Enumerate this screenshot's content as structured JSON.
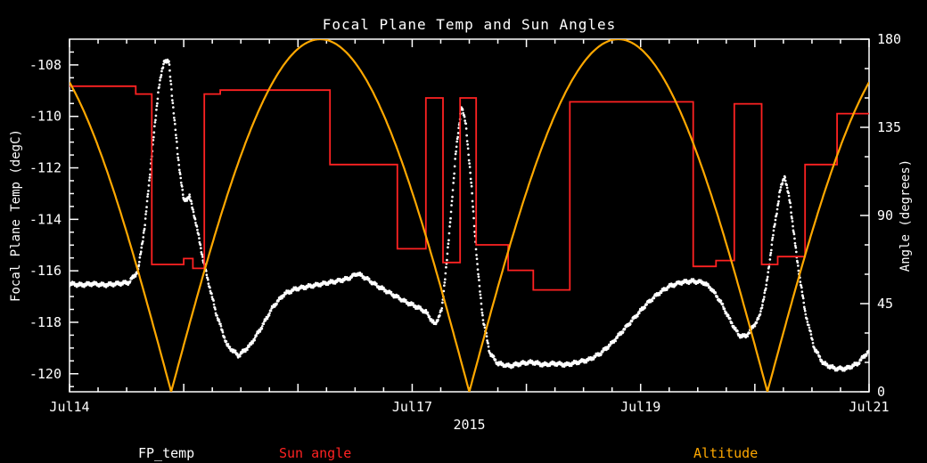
{
  "title": "Focal Plane Temp and Sun Angles",
  "axes": {
    "left": {
      "label": "Focal Plane Temp (degC)",
      "range": [
        -120.7,
        -107.0
      ],
      "ticks": [
        -108,
        -110,
        -112,
        -114,
        -116,
        -118,
        -120
      ],
      "minor_step": 0.5
    },
    "right": {
      "label": "Angle (degrees)",
      "range": [
        0,
        180
      ],
      "ticks": [
        0,
        45,
        90,
        135,
        180
      ],
      "minor_step": 15
    },
    "x": {
      "range": [
        14,
        21
      ],
      "major_ticks": [
        14,
        15,
        16,
        17,
        18,
        19,
        20,
        21
      ],
      "minor_step": 0.25,
      "tick_labels": [
        {
          "t": 14,
          "text": "Jul14"
        },
        {
          "t": 17,
          "text": "Jul17"
        },
        {
          "t": 19,
          "text": "Jul19"
        },
        {
          "t": 21,
          "text": "Jul21"
        }
      ],
      "sub_label": "2015"
    }
  },
  "legend": [
    {
      "label": "FP_temp",
      "color": "#ffffff"
    },
    {
      "label": "Sun angle",
      "color": "#ff2222"
    },
    {
      "label": "Altitude",
      "color": "#ffa800"
    }
  ],
  "colors": {
    "background": "#000000",
    "axis": "#ffffff",
    "fp_temp": "#ffffff",
    "sun_angle": "#ff2222",
    "altitude": "#ffa800"
  },
  "chart_data": {
    "type": "line",
    "title": "Focal Plane Temp and Sun Angles",
    "x_unit": "day of July 2015",
    "xlim": [
      14,
      21
    ],
    "left_ylabel": "Focal Plane Temp (degC)",
    "left_ylim": [
      -120.7,
      -107.0
    ],
    "right_ylabel": "Angle (degrees)",
    "right_ylim": [
      0,
      180
    ],
    "series": [
      {
        "name": "FP_temp",
        "axis": "left",
        "style": "star-markers",
        "color": "#ffffff",
        "points": [
          [
            14.0,
            -116.5
          ],
          [
            14.1,
            -116.55
          ],
          [
            14.2,
            -116.5
          ],
          [
            14.3,
            -116.55
          ],
          [
            14.42,
            -116.5
          ],
          [
            14.52,
            -116.45
          ],
          [
            14.6,
            -116.0
          ],
          [
            14.66,
            -114.2
          ],
          [
            14.72,
            -111.5
          ],
          [
            14.78,
            -108.9
          ],
          [
            14.83,
            -107.8
          ],
          [
            14.87,
            -107.9
          ],
          [
            14.9,
            -109.3
          ],
          [
            14.95,
            -111.6
          ],
          [
            15.0,
            -113.3
          ],
          [
            15.05,
            -113.1
          ],
          [
            15.1,
            -114.0
          ],
          [
            15.18,
            -115.8
          ],
          [
            15.28,
            -117.6
          ],
          [
            15.38,
            -118.9
          ],
          [
            15.48,
            -119.3
          ],
          [
            15.58,
            -118.9
          ],
          [
            15.68,
            -118.2
          ],
          [
            15.78,
            -117.4
          ],
          [
            15.88,
            -116.9
          ],
          [
            15.98,
            -116.7
          ],
          [
            16.1,
            -116.6
          ],
          [
            16.22,
            -116.5
          ],
          [
            16.34,
            -116.4
          ],
          [
            16.44,
            -116.3
          ],
          [
            16.52,
            -116.1
          ],
          [
            16.6,
            -116.3
          ],
          [
            16.7,
            -116.6
          ],
          [
            16.82,
            -116.9
          ],
          [
            16.94,
            -117.2
          ],
          [
            17.04,
            -117.4
          ],
          [
            17.12,
            -117.6
          ],
          [
            17.2,
            -118.1
          ],
          [
            17.26,
            -117.5
          ],
          [
            17.32,
            -114.8
          ],
          [
            17.38,
            -111.5
          ],
          [
            17.43,
            -109.6
          ],
          [
            17.47,
            -110.3
          ],
          [
            17.52,
            -112.8
          ],
          [
            17.57,
            -115.8
          ],
          [
            17.62,
            -117.9
          ],
          [
            17.68,
            -119.2
          ],
          [
            17.75,
            -119.6
          ],
          [
            17.85,
            -119.7
          ],
          [
            17.95,
            -119.6
          ],
          [
            18.05,
            -119.55
          ],
          [
            18.15,
            -119.65
          ],
          [
            18.25,
            -119.6
          ],
          [
            18.35,
            -119.65
          ],
          [
            18.45,
            -119.55
          ],
          [
            18.55,
            -119.45
          ],
          [
            18.65,
            -119.2
          ],
          [
            18.75,
            -118.8
          ],
          [
            18.85,
            -118.3
          ],
          [
            18.95,
            -117.8
          ],
          [
            19.05,
            -117.3
          ],
          [
            19.15,
            -116.9
          ],
          [
            19.25,
            -116.6
          ],
          [
            19.35,
            -116.45
          ],
          [
            19.45,
            -116.4
          ],
          [
            19.55,
            -116.45
          ],
          [
            19.62,
            -116.7
          ],
          [
            19.7,
            -117.2
          ],
          [
            19.78,
            -117.9
          ],
          [
            19.86,
            -118.5
          ],
          [
            19.92,
            -118.55
          ],
          [
            19.98,
            -118.2
          ],
          [
            20.04,
            -117.8
          ],
          [
            20.1,
            -116.6
          ],
          [
            20.16,
            -114.6
          ],
          [
            20.22,
            -112.9
          ],
          [
            20.26,
            -112.3
          ],
          [
            20.31,
            -113.4
          ],
          [
            20.37,
            -115.6
          ],
          [
            20.44,
            -117.6
          ],
          [
            20.52,
            -119.0
          ],
          [
            20.6,
            -119.6
          ],
          [
            20.7,
            -119.8
          ],
          [
            20.8,
            -119.8
          ],
          [
            20.9,
            -119.6
          ],
          [
            21.0,
            -119.1
          ]
        ]
      },
      {
        "name": "Sun angle",
        "axis": "right",
        "style": "step",
        "color": "#ff2222",
        "points": [
          [
            14.0,
            156
          ],
          [
            14.58,
            152
          ],
          [
            14.72,
            65
          ],
          [
            15.0,
            68
          ],
          [
            15.08,
            63
          ],
          [
            15.18,
            152
          ],
          [
            15.32,
            154
          ],
          [
            16.28,
            116
          ],
          [
            16.87,
            73
          ],
          [
            17.12,
            150
          ],
          [
            17.27,
            66
          ],
          [
            17.42,
            150
          ],
          [
            17.56,
            75
          ],
          [
            17.84,
            62
          ],
          [
            18.06,
            52
          ],
          [
            18.38,
            148
          ],
          [
            19.46,
            64
          ],
          [
            19.66,
            67
          ],
          [
            19.82,
            147
          ],
          [
            20.06,
            65
          ],
          [
            20.2,
            69
          ],
          [
            20.44,
            116
          ],
          [
            20.72,
            142
          ],
          [
            21.0,
            142
          ]
        ]
      },
      {
        "name": "Altitude",
        "axis": "right",
        "style": "abs-sine",
        "color": "#ffa800",
        "params": {
          "amplitude": 180,
          "zero_at": 14.89,
          "half_period": 2.61
        }
      }
    ]
  }
}
